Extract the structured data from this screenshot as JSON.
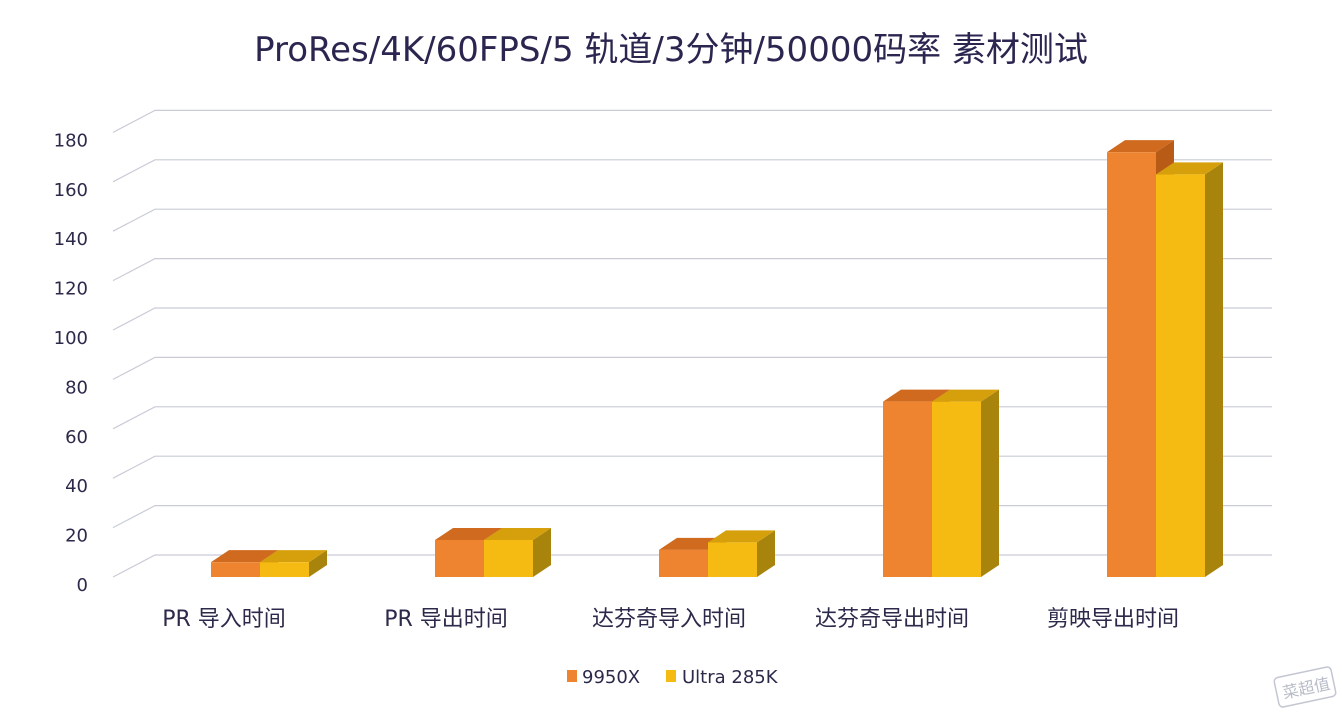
{
  "chart_data": {
    "type": "bar",
    "title": "ProRes/4K/60FPS/5 轨道/3分钟/50000码率  素材测试",
    "categories": [
      "PR 导入时间",
      "PR 导出时间",
      "达芬奇导入时间",
      "达芬奇导出时间",
      "剪映导出时间"
    ],
    "series": [
      {
        "name": "9950X",
        "values": [
          6,
          15,
          11,
          71,
          172
        ]
      },
      {
        "name": "Ultra 285K",
        "values": [
          6,
          15,
          14,
          71,
          163
        ]
      }
    ],
    "yticks": [
      "0",
      "20",
      "40",
      "60",
      "80",
      "100",
      "120",
      "140",
      "160",
      "180"
    ],
    "ylim": [
      0,
      180
    ],
    "grid": true,
    "legend": "bottom",
    "colors": {
      "series_front": [
        "#ee8430",
        "#f5bb12"
      ],
      "series_top": [
        "#cf6a1f",
        "#d6a00c"
      ],
      "series_side": [
        "#b85b17",
        "#a8840d"
      ]
    }
  },
  "watermark": "菜超值"
}
